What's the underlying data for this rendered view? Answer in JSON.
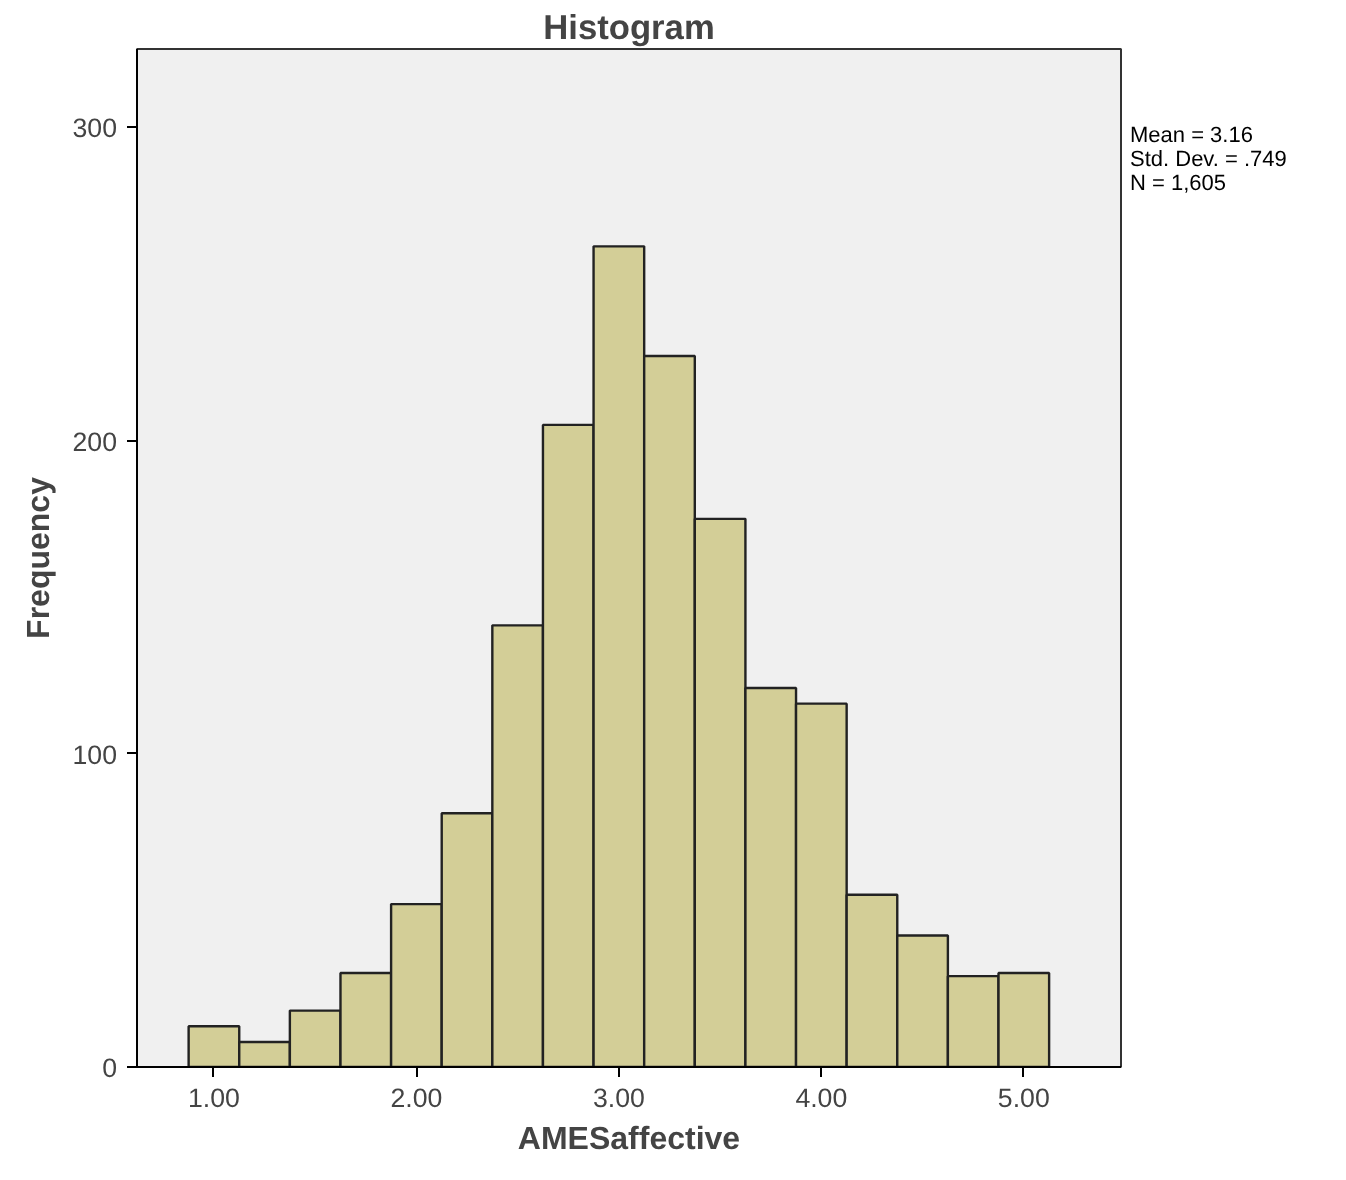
{
  "chart_data": {
    "type": "histogram",
    "title": "Histogram",
    "xlabel": "AMESaffective",
    "ylabel": "Frequency",
    "bins": [
      0.875,
      1.125,
      1.375,
      1.625,
      1.875,
      2.125,
      2.375,
      2.625,
      2.875,
      3.125,
      3.375,
      3.625,
      3.875,
      4.125,
      4.375,
      4.625,
      4.875,
      5.125
    ],
    "values": [
      13,
      8,
      18,
      30,
      52,
      81,
      141,
      205,
      262,
      227,
      175,
      121,
      116,
      55,
      42,
      29,
      30
    ],
    "color": "#d3ce97",
    "xlim": [
      0.62,
      5.48
    ],
    "ylim": [
      0,
      325
    ],
    "xticks": [
      {
        "value": 1,
        "label": "1.00"
      },
      {
        "value": 2,
        "label": "2.00"
      },
      {
        "value": 3,
        "label": "3.00"
      },
      {
        "value": 4,
        "label": "4.00"
      },
      {
        "value": 5,
        "label": "5.00"
      }
    ],
    "yticks": [
      0,
      100,
      200,
      300
    ],
    "grid": false,
    "annotations": [
      "Mean = 3.16",
      "Std. Dev. = .749",
      "N = 1,605"
    ]
  }
}
